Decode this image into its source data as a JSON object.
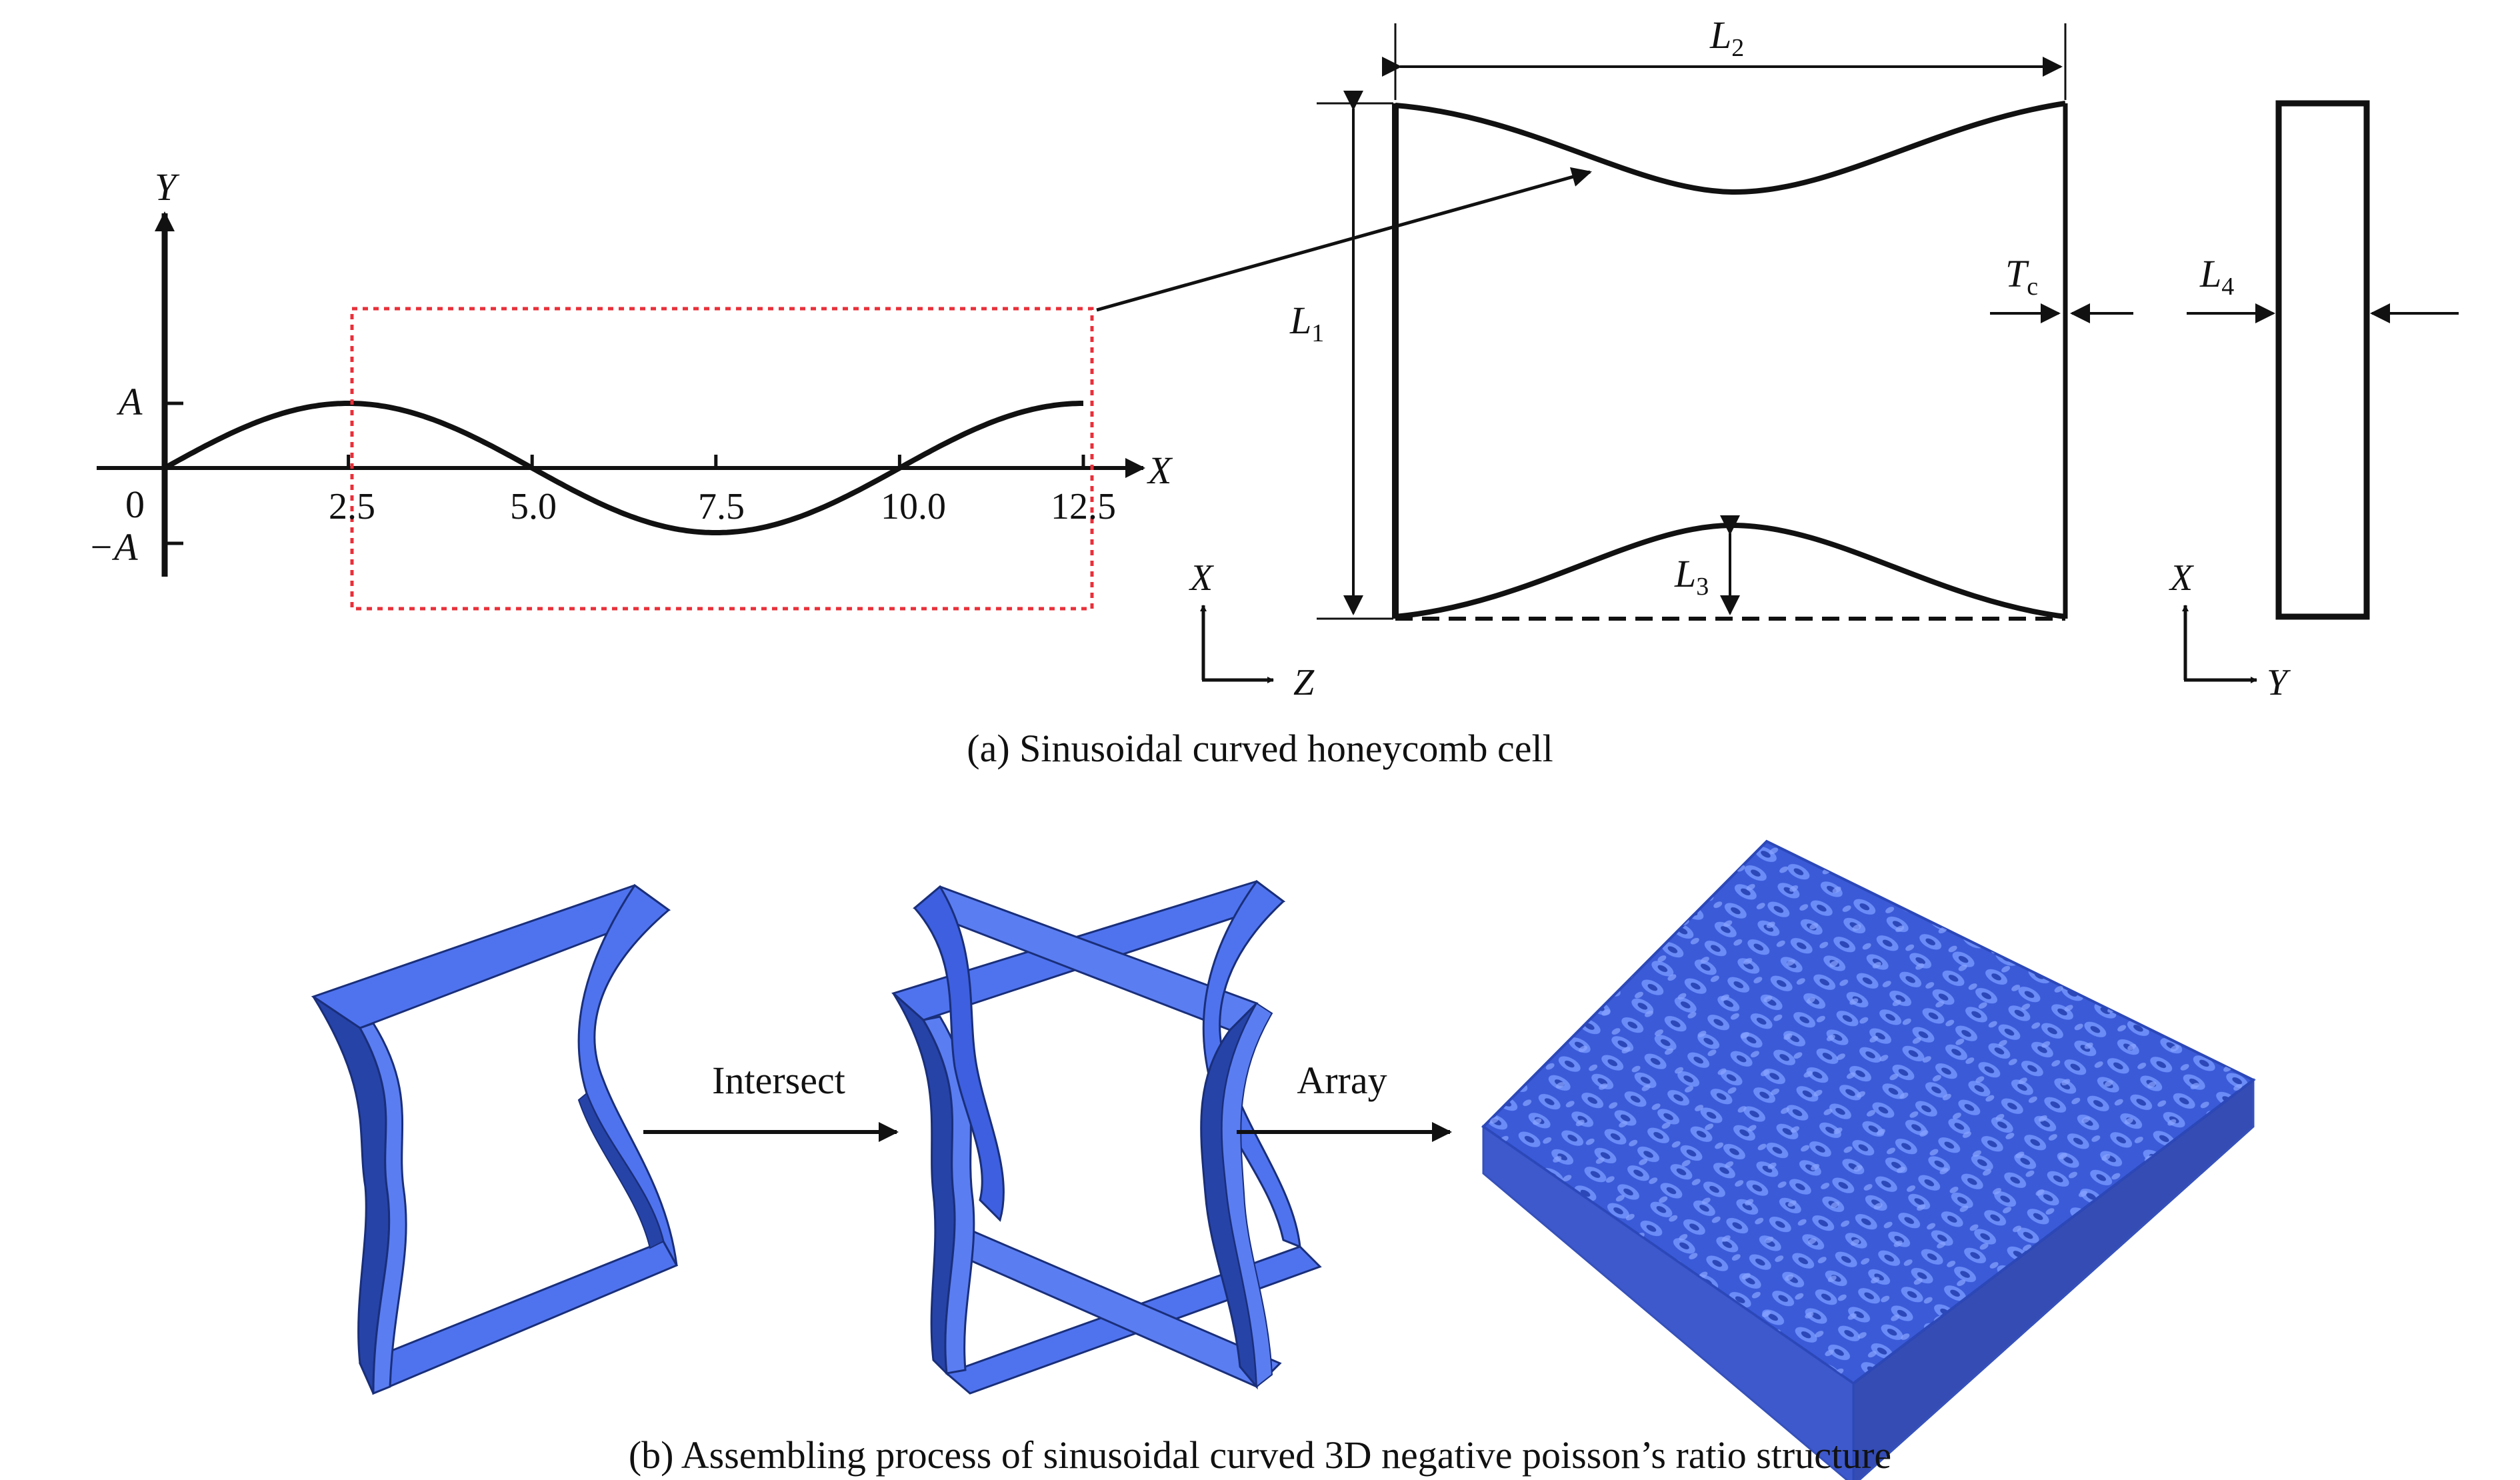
{
  "panel_a": {
    "caption": "(a) Sinusoidal curved honeycomb cell",
    "graph": {
      "axis_x_label": "X",
      "axis_y_label": "Y",
      "amplitude_label": "A",
      "neg_amplitude_label": "−A",
      "origin_label": "0",
      "x_ticks": [
        "2.5",
        "5.0",
        "7.5",
        "10.0",
        "12.5"
      ]
    },
    "cell_front": {
      "dim_L1": "L",
      "dim_L1_sub": "1",
      "dim_L2": "L",
      "dim_L2_sub": "2",
      "dim_L3": "L",
      "dim_L3_sub": "3",
      "dim_Tc": "T",
      "dim_Tc_sub": "c",
      "triad_up": "X",
      "triad_right": "Z"
    },
    "cell_side": {
      "dim_L4": "L",
      "dim_L4_sub": "4",
      "triad_up": "X",
      "triad_right": "Y"
    },
    "colors": {
      "highlight_box": "#e8303a",
      "line": "#111111"
    }
  },
  "panel_b": {
    "caption": "(b) Assembling process of sinusoidal curved 3D negative poisson’s ratio structure",
    "step1_label": "Intersect",
    "step2_label": "Array",
    "colors": {
      "ribbon_face": "#4f73ef",
      "ribbon_dark": "#2643a8",
      "ribbon_edge": "#1a2f7a",
      "lattice": "#5275ea"
    }
  }
}
